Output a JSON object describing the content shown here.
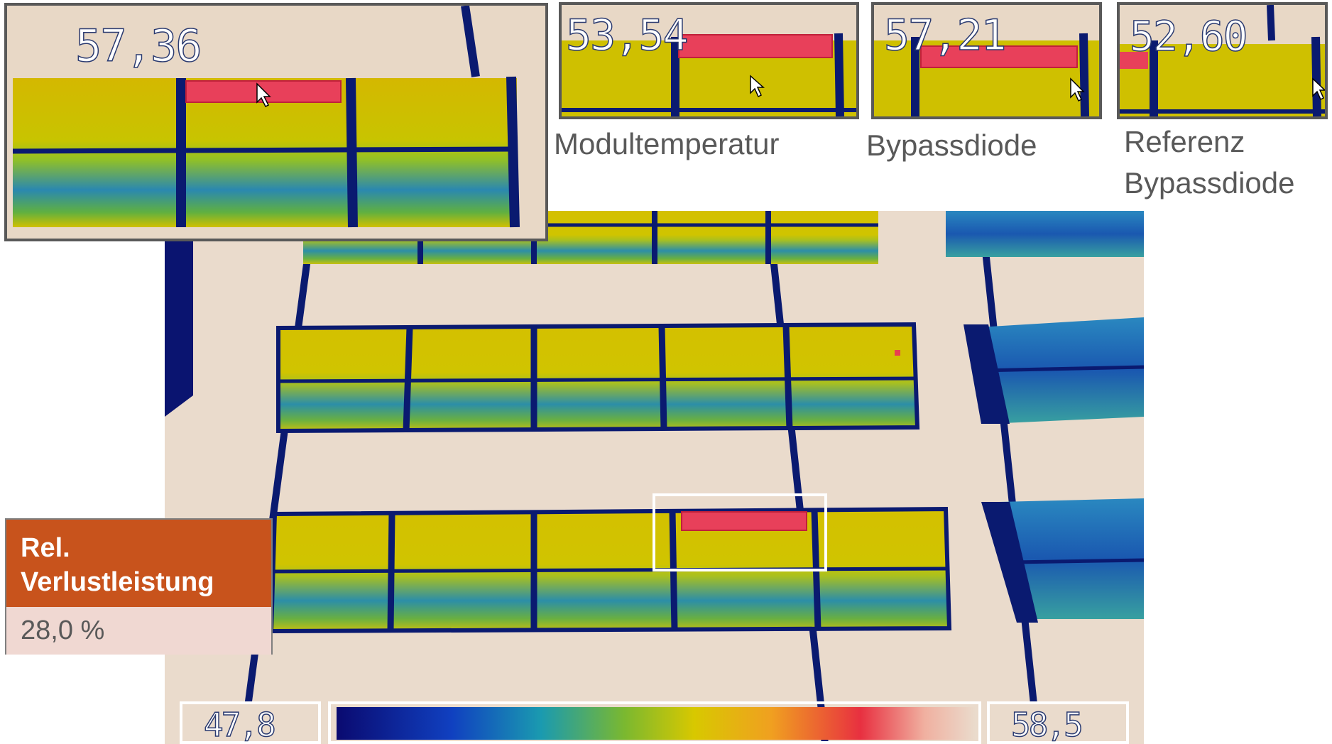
{
  "insets": [
    {
      "id": "main",
      "value": "57,36"
    },
    {
      "id": "modul",
      "value": "53,54",
      "caption": "Modultemperatur"
    },
    {
      "id": "bypass",
      "value": "57,21",
      "caption": "Bypassdiode"
    },
    {
      "id": "ref",
      "value": "52,60",
      "caption_line1": "Referenz",
      "caption_line2": "Bypassdiode"
    }
  ],
  "loss": {
    "label": "Rel.\nVerlustleistung",
    "value": "28,0 %"
  },
  "scale": {
    "min": "47,8",
    "max": "58,5"
  },
  "colors": {
    "accent": "#c8531c",
    "panel_yellow": "#d4c200",
    "panel_green": "#5cae3a",
    "panel_blue": "#1e5fb0",
    "hotspot": "#e8405a",
    "frame_navy": "#0a1a70"
  }
}
